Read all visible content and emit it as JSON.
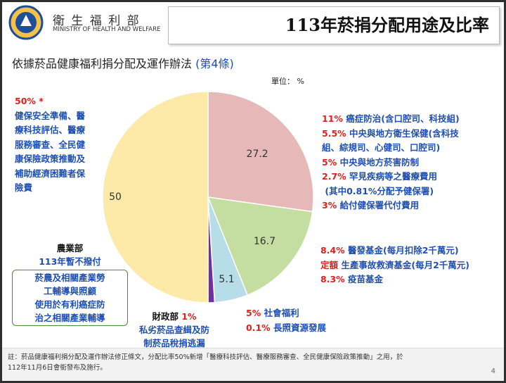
{
  "header": {
    "org_zh": "衛 生 福 利 部",
    "org_en": "MINISTRY OF HEALTH AND WELFARE",
    "title": "113年菸捐分配用途及比率"
  },
  "subtitle": {
    "text": "依據菸品健康福利捐分配及運作辦法",
    "ref": "(第4條)"
  },
  "unit": "單位： %",
  "chart_data": {
    "type": "pie",
    "values": [
      27.2,
      16.7,
      5.1,
      1,
      50
    ],
    "colors": [
      "#e6b9b8",
      "#c3dea0",
      "#b6dde8",
      "#7030a0",
      "#fde9a8"
    ],
    "annotations": [
      {
        "lines": [
          [
            {
              "text": "11%",
              "color": "#e0201c"
            },
            {
              "text": " 癌症防治(含口腔司、科技組)",
              "color": "#1f4fb0"
            }
          ],
          [
            {
              "text": "5.5%",
              "color": "#e0201c"
            },
            {
              "text": " 中央與地方衛生保健(含科技",
              "color": "#1f4fb0"
            }
          ],
          [
            {
              "text": "組、綜規司、心健司、口腔司)",
              "color": "#1f4fb0"
            }
          ],
          [
            {
              "text": "5%",
              "color": "#e0201c"
            },
            {
              "text": " 中央與地方菸害防制",
              "color": "#1f4fb0"
            }
          ],
          [
            {
              "text": "2.7%",
              "color": "#e0201c"
            },
            {
              "text": " 罕見疾病等之醫療費用",
              "color": "#1f4fb0"
            }
          ],
          [
            {
              "text": " (其中0.81%分配予健保署)",
              "color": "#1f4fb0"
            }
          ],
          [
            {
              "text": "3%",
              "color": "#e0201c"
            },
            {
              "text": " 給付健保署代付費用",
              "color": "#1f4fb0"
            }
          ]
        ]
      },
      {
        "lines": [
          [
            {
              "text": "8.4%",
              "color": "#e0201c"
            },
            {
              "text": " 醫發基金(每月扣除2千萬元)",
              "color": "#1f4fb0"
            }
          ],
          [
            {
              "text": "定額",
              "color": "#e0201c"
            },
            {
              "text": " 生產事故救濟基金(每月2千萬元)",
              "color": "#1f4fb0"
            }
          ],
          [
            {
              "text": "8.3%",
              "color": "#e0201c"
            },
            {
              "text": " 疫苗基金",
              "color": "#1f4fb0"
            }
          ]
        ]
      },
      {
        "lines": [
          [
            {
              "text": "5%",
              "color": "#e0201c"
            },
            {
              "text": " 社會福利",
              "color": "#1f4fb0"
            }
          ],
          [
            {
              "text": "0.1%",
              "color": "#e0201c"
            },
            {
              "text": " 長照資源發展",
              "color": "#1f4fb0"
            }
          ]
        ]
      },
      {
        "lines": [
          [
            {
              "text": "財政部",
              "color": "#111111"
            },
            {
              "text": " 1%",
              "color": "#e0201c"
            }
          ],
          [
            {
              "text": "私劣菸品查緝及防",
              "color": "#1f4fb0"
            }
          ],
          [
            {
              "text": "制菸品稅捐逃漏",
              "color": "#1f4fb0"
            }
          ]
        ]
      },
      {
        "lines": [
          [
            {
              "text": "50% *",
              "color": "#e0201c"
            }
          ],
          [
            {
              "text": "健保安全準備、醫",
              "color": "#1f4fb0"
            }
          ],
          [
            {
              "text": "療科技評估、醫療",
              "color": "#1f4fb0"
            }
          ],
          [
            {
              "text": "服務審查、全民健",
              "color": "#1f4fb0"
            }
          ],
          [
            {
              "text": "康保險政策推動及",
              "color": "#1f4fb0"
            }
          ],
          [
            {
              "text": "補助經濟困難者保",
              "color": "#1f4fb0"
            }
          ],
          [
            {
              "text": "險費",
              "color": "#1f4fb0"
            }
          ]
        ]
      }
    ]
  },
  "agriculture": {
    "head": "農業部",
    "note": "113年暫不撥付",
    "measures": [
      "菸農及相關產業勞",
      "工輔導與照顧",
      "使用於有利癌症防",
      "治之相關產業輔導"
    ]
  },
  "footnote": {
    "lines": [
      "註：菸品健康福利捐分配及運作辦法修正條文，分配比率50%新增「醫療科技評估、醫療服務審查、全民健康保險政策推動」之用，於",
      "112年11月6日會銜發布及施行。"
    ],
    "page": "4"
  }
}
